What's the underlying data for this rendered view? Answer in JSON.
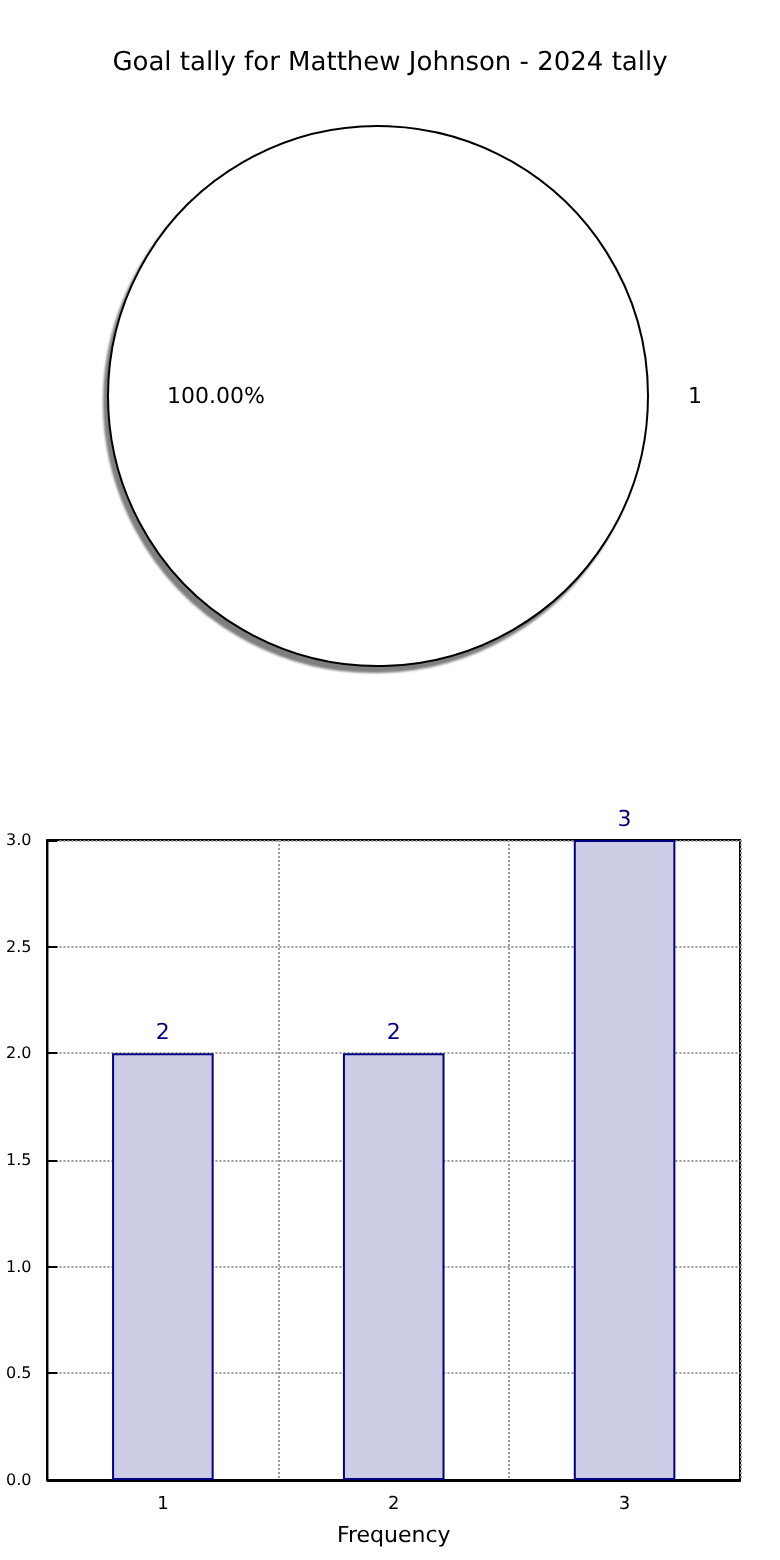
{
  "chart_data": [
    {
      "type": "pie",
      "title": "Goal tally for Matthew Johnson - 2024 tally",
      "categories": [
        "1"
      ],
      "values": [
        100
      ],
      "colors": [
        "#ffffff"
      ],
      "value_labels": [
        "100.00%"
      ]
    },
    {
      "type": "bar",
      "categories": [
        "1",
        "2",
        "3"
      ],
      "values": [
        2,
        2,
        3
      ],
      "color": "#cccce5",
      "xlabel": "Frequency",
      "ylim": [
        0,
        3
      ],
      "yticks": [
        {
          "value": 0,
          "label": "0.0"
        },
        {
          "value": 0.5,
          "label": "0.5"
        },
        {
          "value": 1,
          "label": "1.0"
        },
        {
          "value": 1.5,
          "label": "1.5"
        },
        {
          "value": 2,
          "label": "2.0"
        },
        {
          "value": 2.5,
          "label": "2.5"
        },
        {
          "value": 3,
          "label": "3.0"
        }
      ],
      "grid": true,
      "data_labels": true
    }
  ]
}
